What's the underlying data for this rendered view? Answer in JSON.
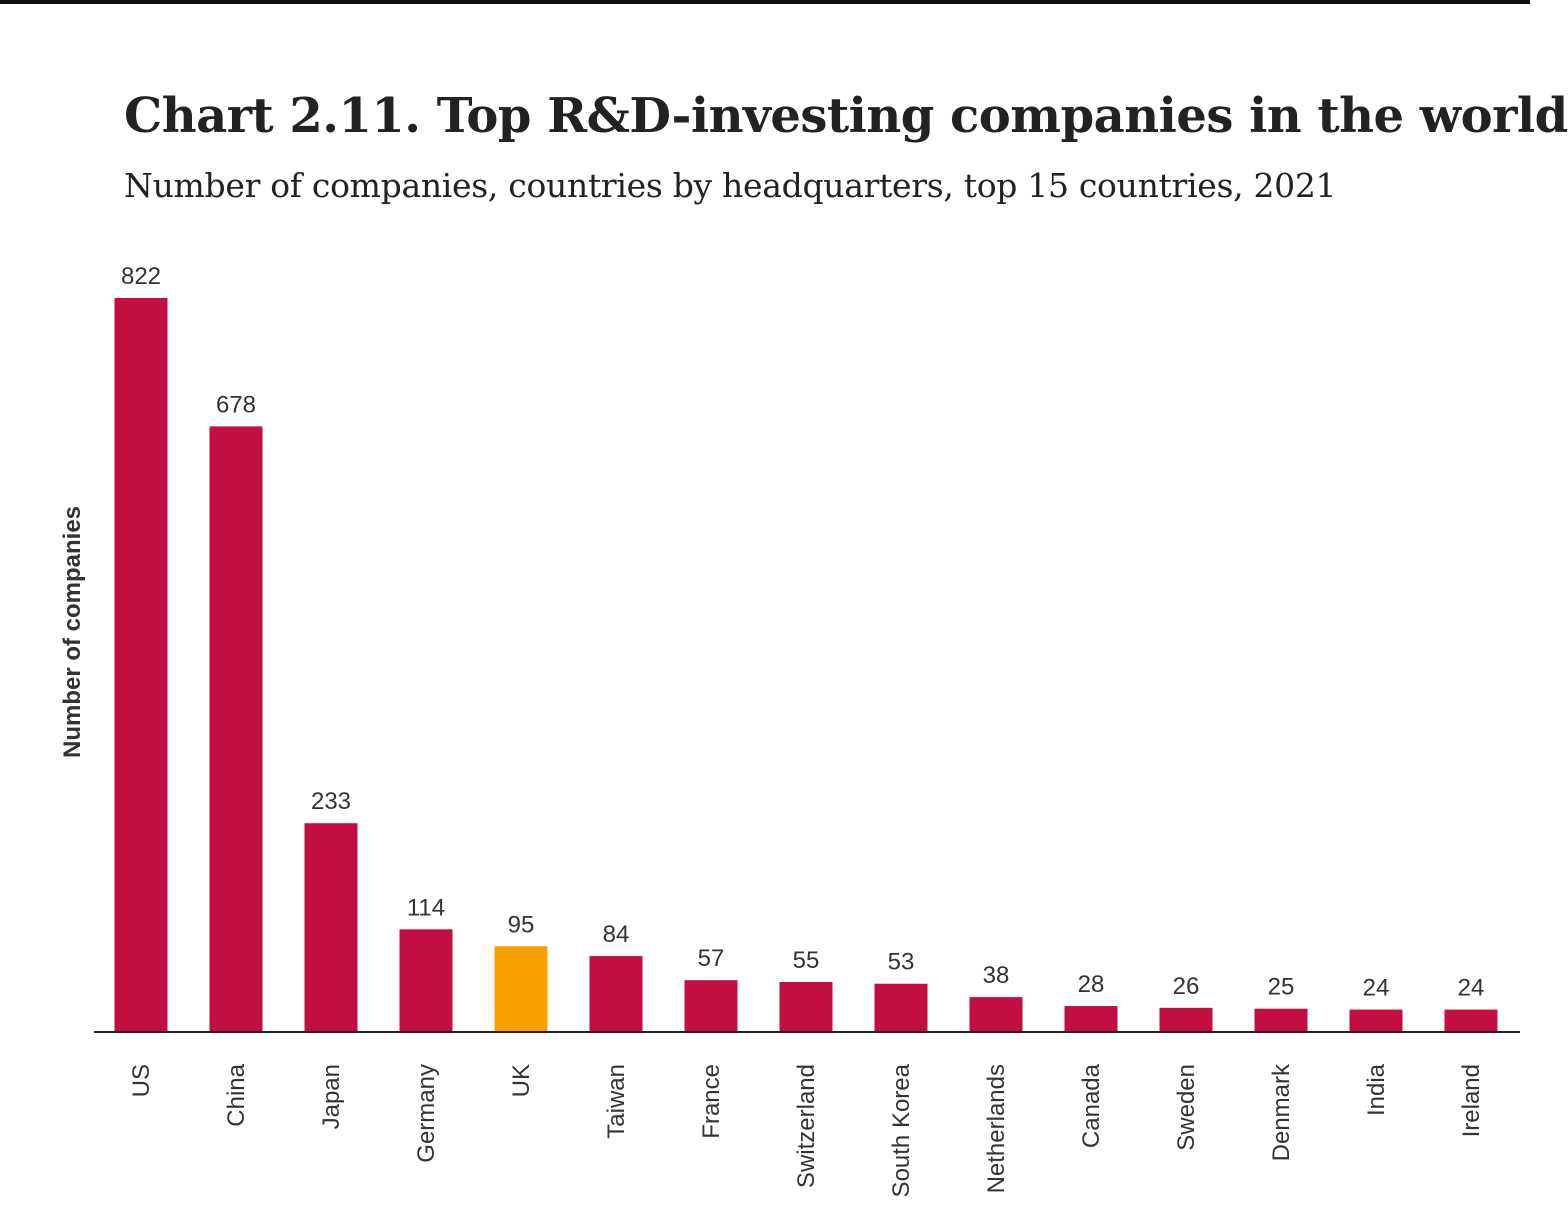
{
  "chart_data": {
    "type": "bar",
    "title": "Chart 2.11. Top R&D-investing companies in the world",
    "subtitle": "Number of companies, countries by headquarters, top 15 countries, 2021",
    "xlabel": "",
    "ylabel": "Number of companies",
    "categories": [
      "US",
      "China",
      "Japan",
      "Germany",
      "UK",
      "Taiwan",
      "France",
      "Switzerland",
      "South Korea",
      "Netherlands",
      "Canada",
      "Sweden",
      "Denmark",
      "India",
      "Ireland"
    ],
    "values": [
      822,
      678,
      233,
      114,
      95,
      84,
      57,
      55,
      53,
      38,
      28,
      26,
      25,
      24,
      24
    ],
    "ylim": [
      0,
      822
    ],
    "grid": false,
    "legend": "none",
    "colors": {
      "default": "#c20e40",
      "highlight": "#f9a000",
      "highlight_category": "UK",
      "axis": "#222222"
    }
  }
}
